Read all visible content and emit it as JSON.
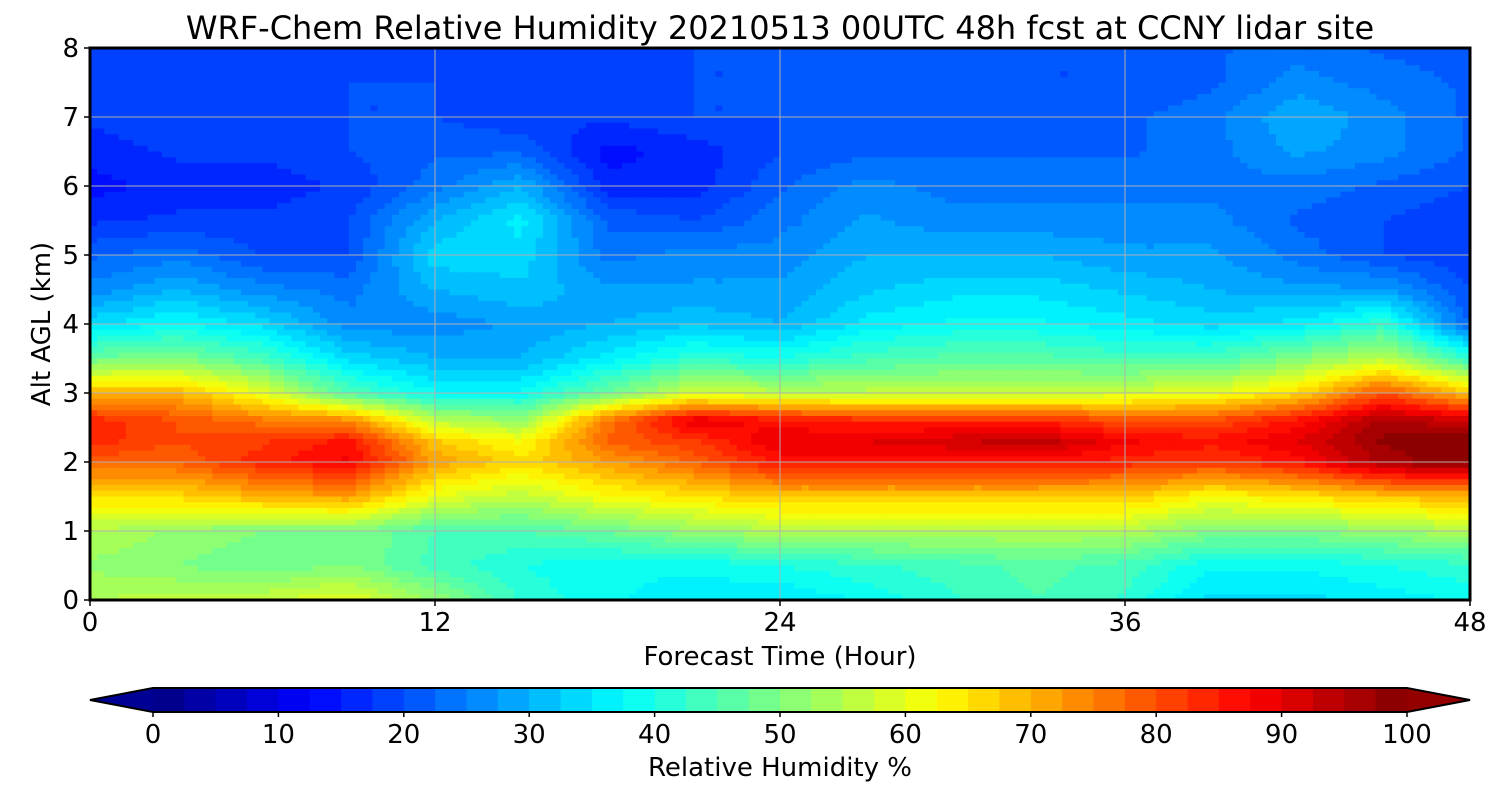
{
  "chart_data": {
    "type": "heatmap",
    "title": "WRF-Chem Relative Humidity 20210513 00UTC 48h fcst at CCNY lidar site",
    "xlabel": "Forecast Time (Hour)",
    "ylabel": "Alt AGL (km)",
    "xlim": [
      0,
      48
    ],
    "ylim": [
      0,
      8
    ],
    "x_ticks": [
      "0",
      "12",
      "24",
      "36",
      "48"
    ],
    "y_ticks": [
      "0",
      "1",
      "2",
      "3",
      "4",
      "5",
      "6",
      "7",
      "8"
    ],
    "grid": true,
    "colorbar": {
      "label": "Relative Humidity %",
      "ticks": [
        "0",
        "10",
        "20",
        "30",
        "40",
        "50",
        "60",
        "70",
        "80",
        "90",
        "100"
      ],
      "range": [
        0,
        100
      ],
      "colormap": "jet",
      "orientation": "horizontal",
      "extend": "both"
    },
    "x": [
      0,
      3,
      6,
      9,
      12,
      15,
      18,
      21,
      24,
      27,
      30,
      33,
      36,
      39,
      42,
      45,
      48
    ],
    "y": [
      0,
      0.5,
      1,
      1.5,
      2,
      2.3,
      2.6,
      3,
      3.5,
      4,
      4.5,
      5,
      5.5,
      6,
      6.5,
      7,
      7.5,
      8
    ],
    "z": [
      [
        55,
        56,
        57,
        60,
        52,
        42,
        38,
        36,
        35,
        38,
        42,
        45,
        42,
        34,
        34,
        36,
        38
      ],
      [
        52,
        50,
        48,
        50,
        44,
        40,
        38,
        38,
        40,
        42,
        44,
        46,
        44,
        38,
        38,
        40,
        42
      ],
      [
        55,
        52,
        50,
        50,
        45,
        45,
        48,
        52,
        55,
        55,
        55,
        55,
        55,
        50,
        50,
        52,
        55
      ],
      [
        65,
        66,
        70,
        72,
        60,
        56,
        62,
        65,
        68,
        68,
        68,
        68,
        68,
        62,
        65,
        68,
        70
      ],
      [
        78,
        78,
        84,
        88,
        72,
        66,
        72,
        78,
        86,
        86,
        86,
        86,
        84,
        82,
        86,
        96,
        100
      ],
      [
        84,
        80,
        82,
        86,
        68,
        62,
        78,
        82,
        90,
        90,
        92,
        94,
        88,
        86,
        90,
        98,
        100
      ],
      [
        84,
        80,
        76,
        74,
        56,
        52,
        76,
        90,
        86,
        84,
        84,
        84,
        80,
        80,
        86,
        96,
        92
      ],
      [
        70,
        70,
        60,
        45,
        38,
        38,
        48,
        58,
        56,
        56,
        56,
        56,
        58,
        60,
        66,
        80,
        68
      ],
      [
        48,
        50,
        44,
        34,
        30,
        30,
        36,
        42,
        40,
        44,
        46,
        46,
        44,
        44,
        50,
        56,
        42
      ],
      [
        34,
        38,
        34,
        26,
        26,
        28,
        30,
        32,
        30,
        36,
        38,
        38,
        36,
        34,
        36,
        42,
        22
      ],
      [
        26,
        30,
        26,
        24,
        30,
        32,
        28,
        28,
        28,
        32,
        34,
        34,
        32,
        30,
        28,
        28,
        20
      ],
      [
        22,
        24,
        20,
        20,
        34,
        34,
        24,
        26,
        26,
        30,
        30,
        30,
        28,
        28,
        24,
        20,
        18
      ],
      [
        17,
        18,
        18,
        20,
        30,
        36,
        22,
        20,
        24,
        28,
        26,
        26,
        26,
        26,
        22,
        20,
        18
      ],
      [
        14,
        16,
        16,
        18,
        24,
        30,
        16,
        16,
        22,
        26,
        24,
        24,
        24,
        24,
        24,
        22,
        20
      ],
      [
        16,
        18,
        18,
        20,
        22,
        22,
        14,
        16,
        20,
        22,
        22,
        22,
        22,
        24,
        28,
        26,
        22
      ],
      [
        18,
        20,
        18,
        20,
        20,
        18,
        18,
        20,
        20,
        22,
        22,
        20,
        22,
        24,
        30,
        26,
        22
      ],
      [
        18,
        20,
        18,
        20,
        20,
        18,
        18,
        20,
        20,
        22,
        22,
        20,
        20,
        22,
        26,
        24,
        22
      ],
      [
        18,
        19,
        18,
        19,
        20,
        18,
        18,
        20,
        20,
        21,
        21,
        20,
        20,
        22,
        24,
        22,
        21
      ]
    ]
  }
}
